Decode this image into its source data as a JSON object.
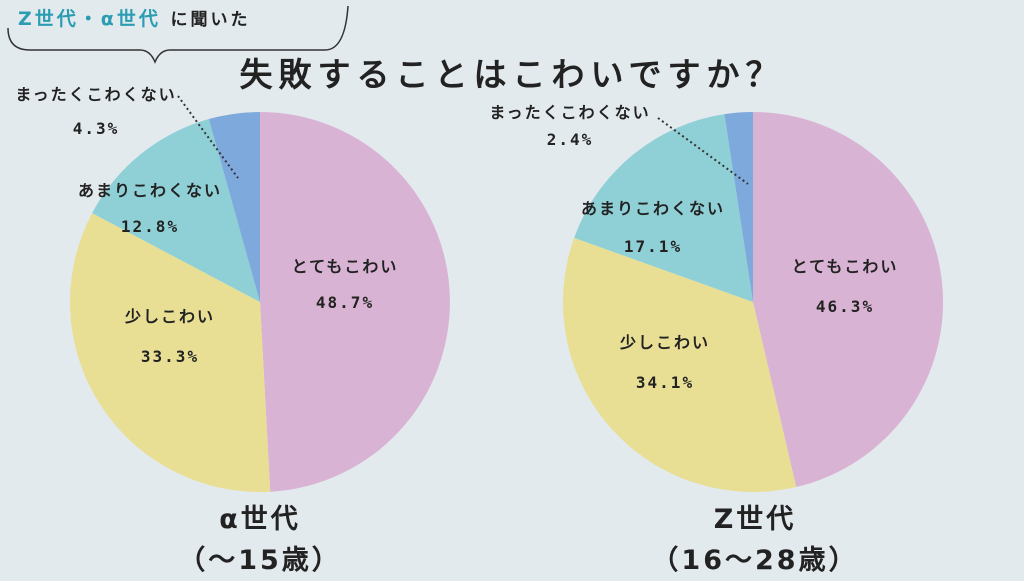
{
  "header": {
    "tag_highlight": "Z世代・α世代",
    "tag_rest": "に聞いた",
    "title": "失敗することはこわいですか？"
  },
  "colors": {
    "very_scared": "#d9b3d3",
    "somewhat_scared": "#e8df95",
    "not_very_scared": "#8fd0d6",
    "not_scared_at_all": "#7ea9dc"
  },
  "chart_data": [
    {
      "type": "pie",
      "group_label": "α世代",
      "group_sub": "（〜15歳）",
      "slices": [
        {
          "label": "とてもこわい",
          "value": 48.7,
          "value_text": "48.7%"
        },
        {
          "label": "少しこわい",
          "value": 33.3,
          "value_text": "33.3%"
        },
        {
          "label": "あまりこわくない",
          "value": 12.8,
          "value_text": "12.8%"
        },
        {
          "label": "まったくこわくない",
          "value": 4.3,
          "value_text": "4.3%"
        }
      ]
    },
    {
      "type": "pie",
      "group_label": "Z世代",
      "group_sub": "（16〜28歳）",
      "slices": [
        {
          "label": "とてもこわい",
          "value": 46.3,
          "value_text": "46.3%"
        },
        {
          "label": "少しこわい",
          "value": 34.1,
          "value_text": "34.1%"
        },
        {
          "label": "あまりこわくない",
          "value": 17.1,
          "value_text": "17.1%"
        },
        {
          "label": "まったくこわくない",
          "value": 2.4,
          "value_text": "2.4%"
        }
      ]
    }
  ]
}
